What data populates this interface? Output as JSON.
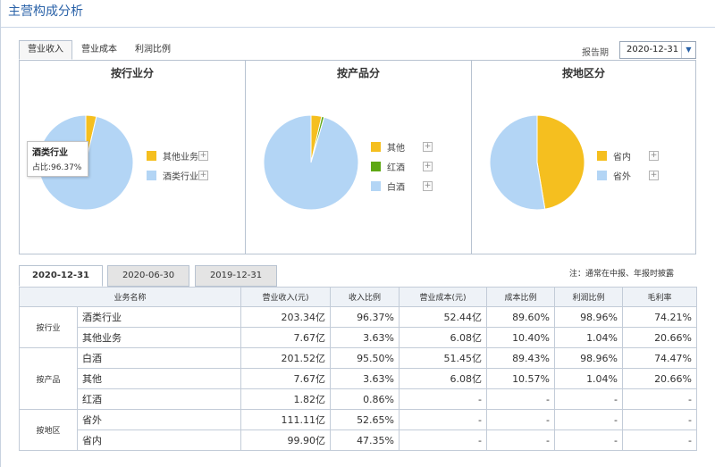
{
  "title": "主营构成分析",
  "tabs": [
    "营业收入",
    "营业成本",
    "利润比例"
  ],
  "period": {
    "label": "报告期",
    "value": "2020-12-31"
  },
  "charts": [
    {
      "title": "按行业分",
      "tooltip": {
        "title": "酒类行业",
        "value": "占比:96.37%"
      },
      "slices": [
        {
          "name": "其他业务",
          "value": 3.63,
          "color": "#f5bf1f"
        },
        {
          "name": "酒类行业",
          "value": 96.37,
          "color": "#b3d5f5"
        }
      ],
      "legend": [
        "其他业务",
        "酒类行业"
      ]
    },
    {
      "title": "按产品分",
      "slices": [
        {
          "name": "其他",
          "value": 3.63,
          "color": "#f5bf1f"
        },
        {
          "name": "红酒",
          "value": 0.86,
          "color": "#5ea814"
        },
        {
          "name": "白酒",
          "value": 95.5,
          "color": "#b3d5f5"
        }
      ],
      "legend": [
        "其他",
        "红酒",
        "白酒"
      ]
    },
    {
      "title": "按地区分",
      "slices": [
        {
          "name": "省内",
          "value": 47.35,
          "color": "#f5bf1f"
        },
        {
          "name": "省外",
          "value": 52.65,
          "color": "#b3d5f5"
        }
      ],
      "legend": [
        "省内",
        "省外"
      ]
    }
  ],
  "date_tabs": [
    "2020-12-31",
    "2020-06-30",
    "2019-12-31"
  ],
  "note": "注：通常在中报、年报时披露",
  "table": {
    "headers": [
      "业务名称",
      "营业收入(元)",
      "收入比例",
      "营业成本(元)",
      "成本比例",
      "利润比例",
      "毛利率"
    ],
    "groups": [
      {
        "category": "按行业",
        "rows": [
          [
            "酒类行业",
            "203.34亿",
            "96.37%",
            "52.44亿",
            "89.60%",
            "98.96%",
            "74.21%"
          ],
          [
            "其他业务",
            "7.67亿",
            "3.63%",
            "6.08亿",
            "10.40%",
            "1.04%",
            "20.66%"
          ]
        ]
      },
      {
        "category": "按产品",
        "rows": [
          [
            "白酒",
            "201.52亿",
            "95.50%",
            "51.45亿",
            "89.43%",
            "98.96%",
            "74.47%"
          ],
          [
            "其他",
            "7.67亿",
            "3.63%",
            "6.08亿",
            "10.57%",
            "1.04%",
            "20.66%"
          ],
          [
            "红酒",
            "1.82亿",
            "0.86%",
            "-",
            "-",
            "-",
            "-"
          ]
        ]
      },
      {
        "category": "按地区",
        "rows": [
          [
            "省外",
            "111.11亿",
            "52.65%",
            "-",
            "-",
            "-",
            "-"
          ],
          [
            "省内",
            "99.90亿",
            "47.35%",
            "-",
            "-",
            "-",
            "-"
          ]
        ]
      }
    ]
  }
}
